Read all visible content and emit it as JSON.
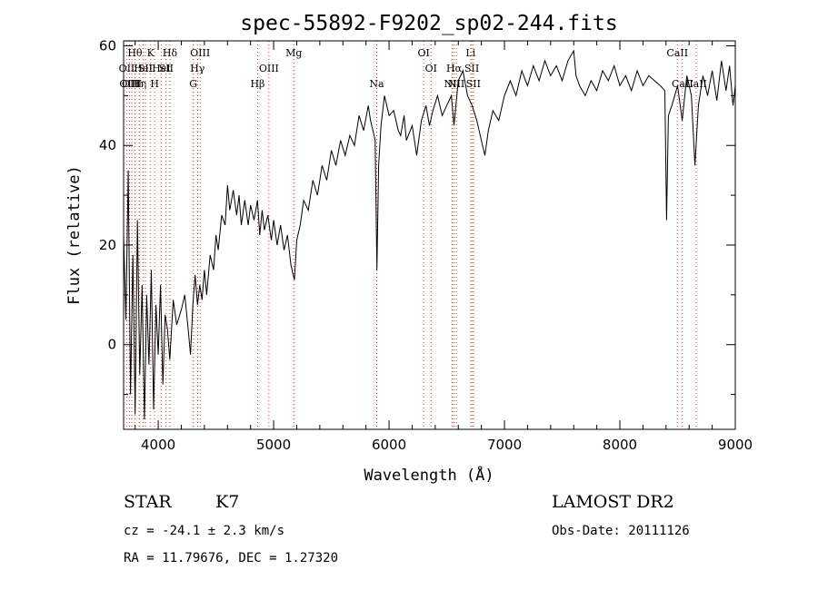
{
  "chart_data": {
    "type": "line",
    "title": "spec-55892-F9202_sp02-244.fits",
    "xlabel": "Wavelength (Å)",
    "ylabel": "Flux (relative)",
    "xlim": [
      3700,
      9000
    ],
    "ylim": [
      -17,
      61
    ],
    "xticks": [
      4000,
      5000,
      6000,
      7000,
      8000,
      9000
    ],
    "yticks": [
      0,
      20,
      40,
      60
    ],
    "grid": false,
    "series": [
      {
        "values": [
          [
            3700,
            22
          ],
          [
            3720,
            5
          ],
          [
            3740,
            35
          ],
          [
            3760,
            -10
          ],
          [
            3780,
            18
          ],
          [
            3800,
            -14
          ],
          [
            3820,
            25
          ],
          [
            3840,
            -6
          ],
          [
            3860,
            12
          ],
          [
            3880,
            -15
          ],
          [
            3900,
            10
          ],
          [
            3920,
            -4
          ],
          [
            3940,
            15
          ],
          [
            3960,
            -13
          ],
          [
            3980,
            8
          ],
          [
            4000,
            -2
          ],
          [
            4020,
            12
          ],
          [
            4040,
            -8
          ],
          [
            4060,
            6
          ],
          [
            4080,
            3
          ],
          [
            4100,
            -3
          ],
          [
            4130,
            9
          ],
          [
            4160,
            4
          ],
          [
            4200,
            7
          ],
          [
            4230,
            10
          ],
          [
            4260,
            3
          ],
          [
            4280,
            -2
          ],
          [
            4300,
            8
          ],
          [
            4320,
            14
          ],
          [
            4340,
            8
          ],
          [
            4360,
            12
          ],
          [
            4380,
            9
          ],
          [
            4400,
            15
          ],
          [
            4420,
            10
          ],
          [
            4450,
            18
          ],
          [
            4480,
            15
          ],
          [
            4500,
            22
          ],
          [
            4520,
            19
          ],
          [
            4550,
            26
          ],
          [
            4580,
            24
          ],
          [
            4600,
            32
          ],
          [
            4620,
            27
          ],
          [
            4650,
            31
          ],
          [
            4680,
            26
          ],
          [
            4700,
            30
          ],
          [
            4720,
            24
          ],
          [
            4750,
            29
          ],
          [
            4780,
            24
          ],
          [
            4800,
            28
          ],
          [
            4830,
            25
          ],
          [
            4860,
            29
          ],
          [
            4880,
            22
          ],
          [
            4900,
            27
          ],
          [
            4920,
            23
          ],
          [
            4950,
            26
          ],
          [
            4980,
            21
          ],
          [
            5000,
            25
          ],
          [
            5030,
            20
          ],
          [
            5060,
            24
          ],
          [
            5090,
            19
          ],
          [
            5120,
            22
          ],
          [
            5150,
            16
          ],
          [
            5180,
            13
          ],
          [
            5200,
            21
          ],
          [
            5230,
            24
          ],
          [
            5260,
            29
          ],
          [
            5300,
            27
          ],
          [
            5340,
            33
          ],
          [
            5380,
            30
          ],
          [
            5420,
            36
          ],
          [
            5460,
            33
          ],
          [
            5500,
            39
          ],
          [
            5540,
            36
          ],
          [
            5580,
            41
          ],
          [
            5620,
            38
          ],
          [
            5660,
            42
          ],
          [
            5700,
            40
          ],
          [
            5740,
            46
          ],
          [
            5780,
            43
          ],
          [
            5820,
            48
          ],
          [
            5840,
            45
          ],
          [
            5860,
            43
          ],
          [
            5880,
            41
          ],
          [
            5895,
            15
          ],
          [
            5910,
            36
          ],
          [
            5930,
            44
          ],
          [
            5960,
            50
          ],
          [
            6000,
            46
          ],
          [
            6040,
            47
          ],
          [
            6080,
            43
          ],
          [
            6100,
            42
          ],
          [
            6130,
            46
          ],
          [
            6150,
            41
          ],
          [
            6200,
            44
          ],
          [
            6240,
            38
          ],
          [
            6280,
            45
          ],
          [
            6320,
            48
          ],
          [
            6350,
            44
          ],
          [
            6380,
            47
          ],
          [
            6420,
            50
          ],
          [
            6460,
            46
          ],
          [
            6500,
            48
          ],
          [
            6540,
            50
          ],
          [
            6563,
            44
          ],
          [
            6600,
            53
          ],
          [
            6640,
            55
          ],
          [
            6680,
            50
          ],
          [
            6720,
            48
          ],
          [
            6760,
            45
          ],
          [
            6800,
            41
          ],
          [
            6830,
            38
          ],
          [
            6860,
            43
          ],
          [
            6900,
            47
          ],
          [
            6950,
            45
          ],
          [
            7000,
            50
          ],
          [
            7050,
            53
          ],
          [
            7100,
            50
          ],
          [
            7150,
            55
          ],
          [
            7200,
            52
          ],
          [
            7250,
            56
          ],
          [
            7300,
            53
          ],
          [
            7350,
            57
          ],
          [
            7400,
            54
          ],
          [
            7450,
            56
          ],
          [
            7500,
            53
          ],
          [
            7550,
            57
          ],
          [
            7600,
            59
          ],
          [
            7620,
            54
          ],
          [
            7650,
            52
          ],
          [
            7700,
            50
          ],
          [
            7750,
            53
          ],
          [
            7800,
            51
          ],
          [
            7850,
            55
          ],
          [
            7900,
            53
          ],
          [
            7950,
            56
          ],
          [
            8000,
            52
          ],
          [
            8050,
            54
          ],
          [
            8100,
            51
          ],
          [
            8150,
            55
          ],
          [
            8200,
            52
          ],
          [
            8250,
            54
          ],
          [
            8300,
            53
          ],
          [
            8350,
            52
          ],
          [
            8390,
            51
          ],
          [
            8405,
            25
          ],
          [
            8420,
            46
          ],
          [
            8450,
            48
          ],
          [
            8500,
            52
          ],
          [
            8540,
            45
          ],
          [
            8580,
            54
          ],
          [
            8620,
            50
          ],
          [
            8650,
            36
          ],
          [
            8680,
            48
          ],
          [
            8720,
            54
          ],
          [
            8760,
            50
          ],
          [
            8800,
            55
          ],
          [
            8840,
            49
          ],
          [
            8880,
            57
          ],
          [
            8920,
            51
          ],
          [
            8950,
            56
          ],
          [
            8980,
            48
          ],
          [
            9000,
            52
          ]
        ]
      }
    ],
    "line_markers": [
      {
        "wl": 3727,
        "label": "OII",
        "row": 1
      },
      {
        "wl": 3750,
        "label": "OIII",
        "row": 2
      },
      {
        "wl": 3771,
        "label": "OIII",
        "row": 2
      },
      {
        "wl": 3798,
        "label": "Hθ",
        "row": 0
      },
      {
        "wl": 3835,
        "label": "Hη",
        "row": 2
      },
      {
        "wl": 3869,
        "label": "HeI",
        "row": 1
      },
      {
        "wl": 3889,
        "label": "SII",
        "row": 1
      },
      {
        "wl": 3934,
        "label": "K",
        "row": 0
      },
      {
        "wl": 3969,
        "label": "H",
        "row": 2
      },
      {
        "wl": 4026,
        "label": "HeI",
        "row": 1
      },
      {
        "wl": 4069,
        "label": "SII",
        "row": 1
      },
      {
        "wl": 4102,
        "label": "Hδ",
        "row": 0
      },
      {
        "wl": 4304,
        "label": "G",
        "row": 2
      },
      {
        "wl": 4340,
        "label": "Hγ",
        "row": 1
      },
      {
        "wl": 4363,
        "label": "OIII",
        "row": 0
      },
      {
        "wl": 4861,
        "label": "Hβ",
        "row": 2
      },
      {
        "wl": 4959,
        "label": "OIII",
        "row": 1
      },
      {
        "wl": 5175,
        "label": "Mg",
        "row": 0
      },
      {
        "wl": 5893,
        "label": "Na",
        "row": 2
      },
      {
        "wl": 6300,
        "label": "OI",
        "row": 0
      },
      {
        "wl": 6364,
        "label": "OI",
        "row": 1
      },
      {
        "wl": 6548,
        "label": "NII",
        "row": 2
      },
      {
        "wl": 6563,
        "label": "Hα",
        "row": 1
      },
      {
        "wl": 6583,
        "label": "NII",
        "row": 2
      },
      {
        "wl": 6707,
        "label": "Li",
        "row": 0
      },
      {
        "wl": 6717,
        "label": "SII",
        "row": 1
      },
      {
        "wl": 6731,
        "label": "SII",
        "row": 2
      },
      {
        "wl": 8498,
        "label": "CaII",
        "row": 0
      },
      {
        "wl": 8542,
        "label": "CaII",
        "row": 2
      },
      {
        "wl": 8662,
        "label": "CaII",
        "row": 2
      }
    ]
  },
  "info": {
    "class_label": "STAR",
    "subclass": "K7",
    "survey": "LAMOST DR2",
    "cz": "cz = -24.1 ± 2.3 km/s",
    "obs_date": "Obs-Date: 20111126",
    "coords": "RA =  11.79676, DEC =   1.27320"
  }
}
